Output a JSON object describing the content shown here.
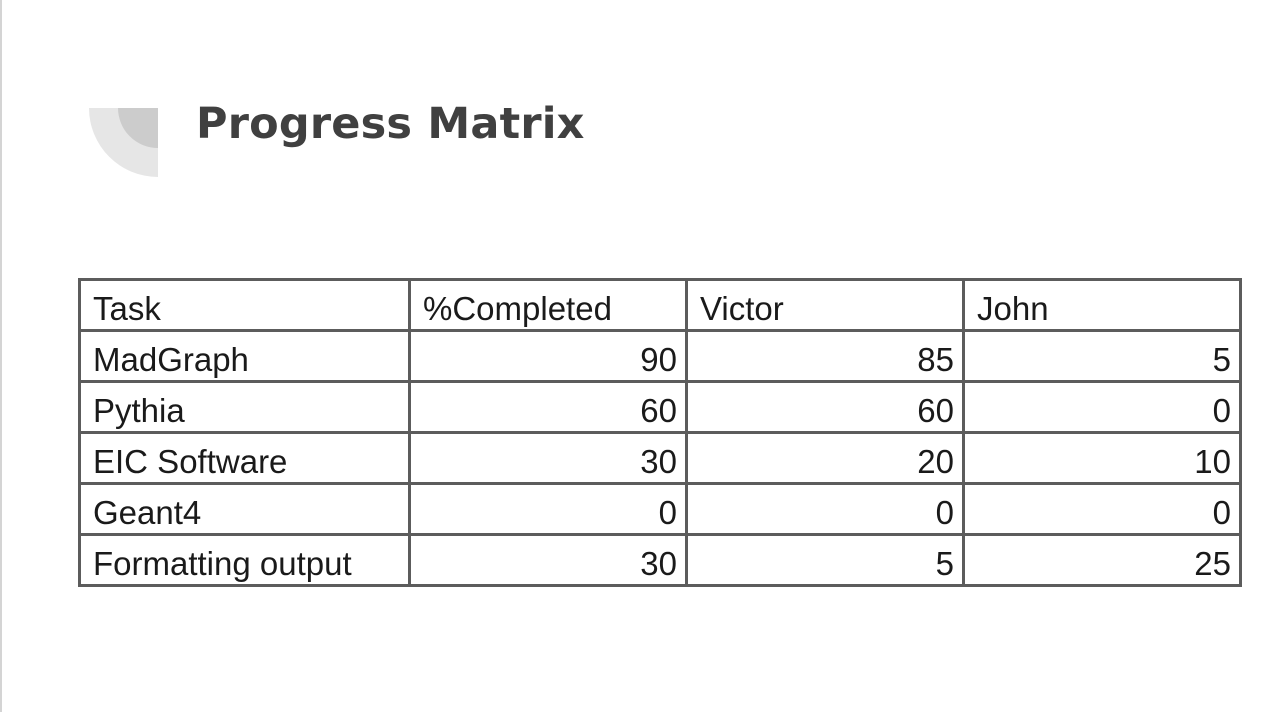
{
  "slide": {
    "title": "Progress Matrix"
  },
  "table": {
    "headers": [
      "Task",
      "%Completed",
      "Victor",
      "John"
    ],
    "rows": [
      [
        "MadGraph",
        "90",
        "85",
        "5"
      ],
      [
        "Pythia",
        "60",
        "60",
        "0"
      ],
      [
        "EIC Software",
        "30",
        "20",
        "10"
      ],
      [
        "Geant4",
        "0",
        "0",
        "0"
      ],
      [
        "Formatting output",
        "30",
        "5",
        "25"
      ]
    ]
  },
  "colors": {
    "title": "#404040",
    "table_border": "#5c5c5c",
    "deco_outer": "#e6e6e6",
    "deco_inner": "#cccccc"
  }
}
